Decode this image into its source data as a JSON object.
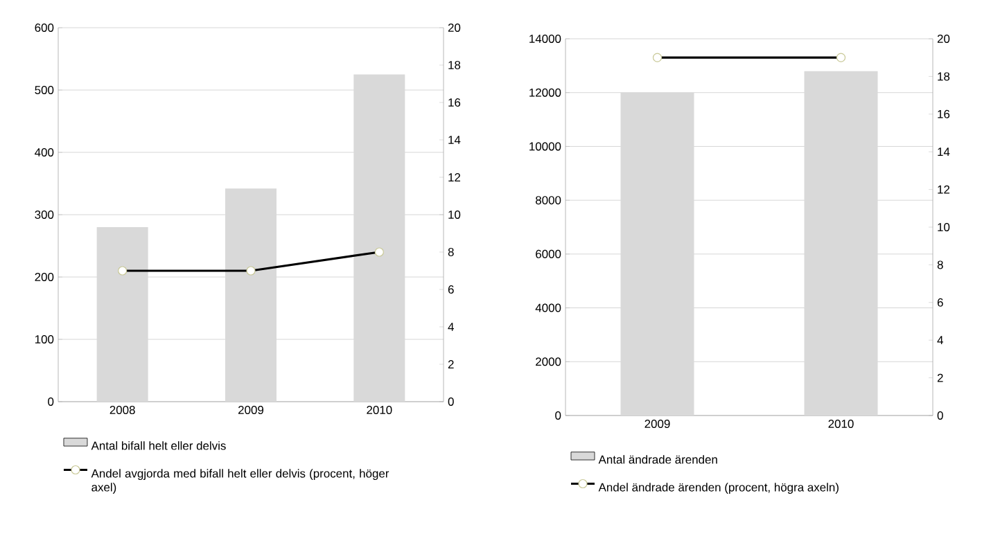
{
  "chart_data": [
    {
      "type": "bar",
      "categories": [
        "2008",
        "2009",
        "2010"
      ],
      "series": [
        {
          "name": "Antal bifall helt eller delvis",
          "color": "#d9d9d9",
          "values": [
            280,
            342,
            525
          ]
        },
        {
          "name": "Andel avgjorda med bifall helt eller delvis (procent, höger axel)",
          "type": "line",
          "axis": "y2",
          "color": "#000000",
          "values": [
            7,
            7,
            8
          ]
        }
      ],
      "ylim": [
        0,
        600
      ],
      "yticks": [
        0,
        100,
        200,
        300,
        400,
        500,
        600
      ],
      "y2lim": [
        0,
        20
      ],
      "y2ticks": [
        0,
        2,
        4,
        6,
        8,
        10,
        12,
        14,
        16,
        18,
        20
      ],
      "grid": "y",
      "legend": "bottom",
      "marker": "circle",
      "line_style": "solid"
    },
    {
      "type": "bar",
      "categories": [
        "2009",
        "2010"
      ],
      "series": [
        {
          "name": "Antal ändrade ärenden",
          "color": "#d9d9d9",
          "values": [
            12000,
            12800
          ]
        },
        {
          "name": "Andel ändrade ärenden (procent, högra axeln)",
          "type": "line",
          "axis": "y2",
          "color": "#000000",
          "values": [
            19,
            19
          ]
        }
      ],
      "ylim": [
        0,
        14000
      ],
      "yticks": [
        0,
        2000,
        4000,
        6000,
        8000,
        10000,
        12000,
        14000
      ],
      "y2lim": [
        0,
        20
      ],
      "y2ticks": [
        0,
        2,
        4,
        6,
        8,
        10,
        12,
        14,
        16,
        18,
        20
      ],
      "grid": "y",
      "legend": "bottom",
      "marker": "circle",
      "line_style": "solid"
    }
  ]
}
